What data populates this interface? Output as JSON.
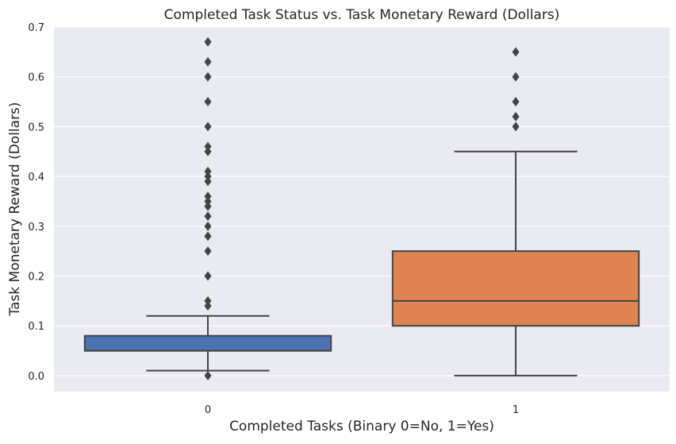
{
  "chart_data": {
    "type": "box",
    "title": "Completed Task Status vs. Task Monetary Reward (Dollars)",
    "xlabel": "Completed Tasks (Binary 0=No, 1=Yes)",
    "ylabel": "Task Monetary Reward (Dollars)",
    "categories": [
      "0",
      "1"
    ],
    "ylim": [
      -0.032,
      0.7
    ],
    "yticks": [
      0.0,
      0.1,
      0.2,
      0.3,
      0.4,
      0.5,
      0.6,
      0.7
    ],
    "ytick_labels": [
      "0.0",
      "0.1",
      "0.2",
      "0.3",
      "0.4",
      "0.5",
      "0.6",
      "0.7"
    ],
    "grid": true,
    "boxes": [
      {
        "category": "0",
        "color": "#4c72b0",
        "whisker_low": 0.01,
        "q1": 0.05,
        "median": 0.05,
        "q3": 0.08,
        "whisker_high": 0.12,
        "outliers": [
          0.0,
          0.14,
          0.15,
          0.2,
          0.25,
          0.28,
          0.3,
          0.32,
          0.34,
          0.35,
          0.36,
          0.39,
          0.4,
          0.41,
          0.45,
          0.46,
          0.5,
          0.55,
          0.6,
          0.63,
          0.67
        ]
      },
      {
        "category": "1",
        "color": "#dd8452",
        "whisker_low": 0.0,
        "q1": 0.1,
        "median": 0.15,
        "q3": 0.25,
        "whisker_high": 0.45,
        "outliers": [
          0.5,
          0.52,
          0.55,
          0.6,
          0.65
        ]
      }
    ],
    "colors": {
      "plot_background": "#eaeaf2",
      "grid": "#ffffff",
      "line": "#444444",
      "text": "#262626"
    }
  }
}
